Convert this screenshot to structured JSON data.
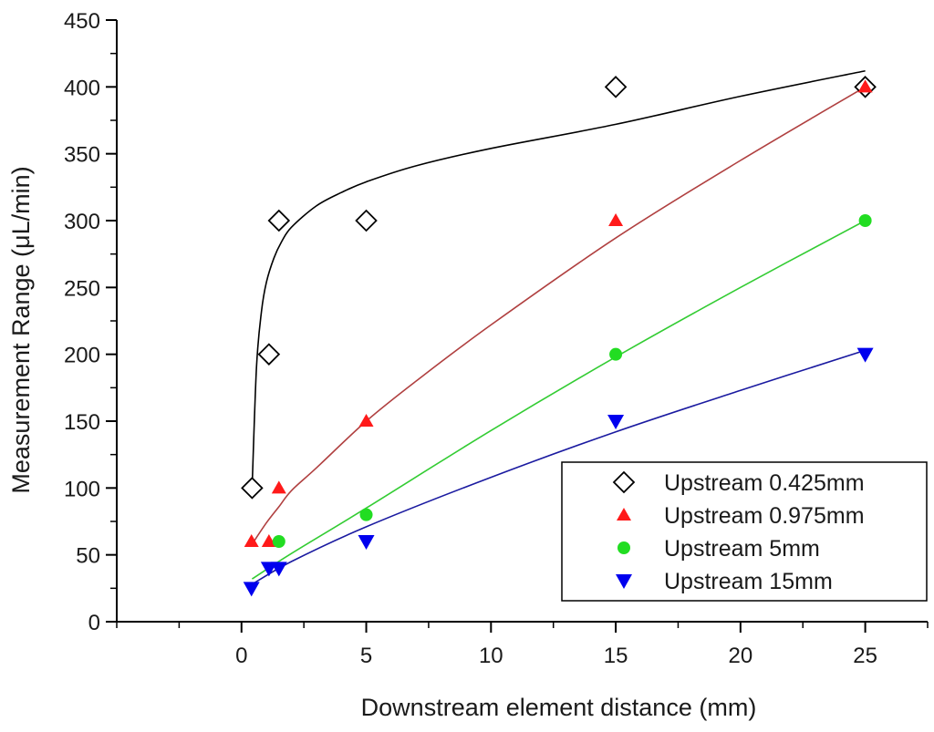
{
  "chart_data": {
    "type": "scatter",
    "xlabel": "Downstream element distance (mm)",
    "ylabel": "Measurement Range (μL/min)",
    "xlim": [
      -5,
      27.5
    ],
    "ylim": [
      0,
      450
    ],
    "x_ticks": [
      0,
      5,
      10,
      15,
      20,
      25
    ],
    "y_ticks": [
      0,
      50,
      100,
      150,
      200,
      250,
      300,
      350,
      400,
      450
    ],
    "x_minor_step": 2.5,
    "y_minor_step": 25,
    "grid": false,
    "legend_position": "bottom-right",
    "series": [
      {
        "name": "Upstream 0.425mm",
        "marker": "diamond-open",
        "color": "#000000",
        "points": [
          [
            0.425,
            100
          ],
          [
            1.1,
            200
          ],
          [
            1.5,
            300
          ],
          [
            5,
            300
          ],
          [
            15,
            400
          ],
          [
            25,
            400
          ]
        ],
        "fit_color": "#000000",
        "fit": [
          [
            0.425,
            100
          ],
          [
            0.6,
            190
          ],
          [
            0.8,
            232
          ],
          [
            1.0,
            254
          ],
          [
            1.3,
            272
          ],
          [
            1.6,
            284
          ],
          [
            2,
            295
          ],
          [
            3,
            311
          ],
          [
            4,
            321
          ],
          [
            5,
            329
          ],
          [
            7,
            341
          ],
          [
            10,
            354
          ],
          [
            15,
            372
          ],
          [
            20,
            393
          ],
          [
            25,
            412
          ]
        ]
      },
      {
        "name": "Upstream 0.975mm",
        "marker": "triangle-up",
        "color": "#ff1a1a",
        "points": [
          [
            0.4,
            60
          ],
          [
            1.1,
            60
          ],
          [
            1.5,
            100
          ],
          [
            5,
            150
          ],
          [
            15,
            300
          ],
          [
            25,
            400
          ]
        ],
        "fit_color": "#b04040",
        "fit": [
          [
            0.425,
            58
          ],
          [
            1,
            74
          ],
          [
            1.5,
            86
          ],
          [
            2,
            98
          ],
          [
            3,
            115
          ],
          [
            5,
            150
          ],
          [
            7,
            180
          ],
          [
            10,
            222
          ],
          [
            15,
            287
          ],
          [
            20,
            345
          ],
          [
            25,
            400
          ]
        ]
      },
      {
        "name": "Upstream 5mm",
        "marker": "circle",
        "color": "#22dd22",
        "points": [
          [
            1.5,
            60
          ],
          [
            5,
            80
          ],
          [
            15,
            200
          ],
          [
            25,
            300
          ]
        ],
        "fit_color": "#33cc33",
        "fit": [
          [
            0.425,
            32
          ],
          [
            2,
            51
          ],
          [
            5,
            85
          ],
          [
            10,
            143
          ],
          [
            15,
            198
          ],
          [
            20,
            250
          ],
          [
            25,
            300
          ]
        ]
      },
      {
        "name": "Upstream 15mm",
        "marker": "triangle-down",
        "color": "#0000ee",
        "points": [
          [
            0.4,
            25
          ],
          [
            1.1,
            40
          ],
          [
            1.5,
            40
          ],
          [
            5,
            60
          ],
          [
            15,
            150
          ],
          [
            25,
            200
          ]
        ],
        "fit_color": "#1a1aa0",
        "fit": [
          [
            0.425,
            28
          ],
          [
            2,
            45
          ],
          [
            5,
            71
          ],
          [
            10,
            108
          ],
          [
            15,
            142
          ],
          [
            20,
            173
          ],
          [
            25,
            203
          ]
        ]
      }
    ]
  }
}
